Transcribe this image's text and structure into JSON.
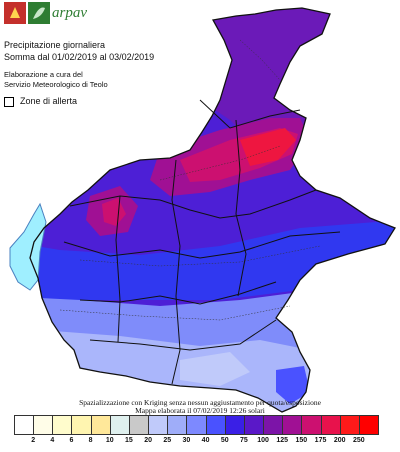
{
  "brand": {
    "name": "arpav"
  },
  "header": {
    "title": "Precipitazione giornaliera",
    "period": "Somma dal 01/02/2019 al 03/02/2019",
    "credit_line1": "Elaborazione a cura del",
    "credit_line2": "Servizio Meteorologico di Teolo"
  },
  "legend_alert": {
    "label": "Zone di allerta"
  },
  "footer": {
    "method": "Spazializzazione con Kriging senza nessun aggiustamento per quota/esposizione",
    "processed": "Mappa elaborata il 07/02/2019 12:26 solari"
  },
  "color_scale": {
    "unit": "",
    "breaks": [
      "2",
      "4",
      "6",
      "8",
      "10",
      "15",
      "20",
      "25",
      "30",
      "40",
      "50",
      "75",
      "100",
      "125",
      "150",
      "175",
      "200",
      "250"
    ],
    "colors": [
      "#ffffff",
      "#fffde8",
      "#fffccc",
      "#fff5b0",
      "#ffe89a",
      "#dff0ee",
      "#c9c9c9",
      "#c0cafa",
      "#9fadf9",
      "#7d89ff",
      "#4a52ff",
      "#3a1fe6",
      "#5a18c8",
      "#7c14a8",
      "#a01094",
      "#cc1070",
      "#e8124c",
      "#ff1a1a",
      "#ff0000"
    ]
  },
  "zones_colors": {
    "lake": "#9fefff",
    "north": "#6b1ab8",
    "peak": "#ee1640",
    "mid": "#4d1fd6",
    "band": "#3038f0",
    "plain": "#7f8cfa",
    "south": "#aab6fb"
  }
}
